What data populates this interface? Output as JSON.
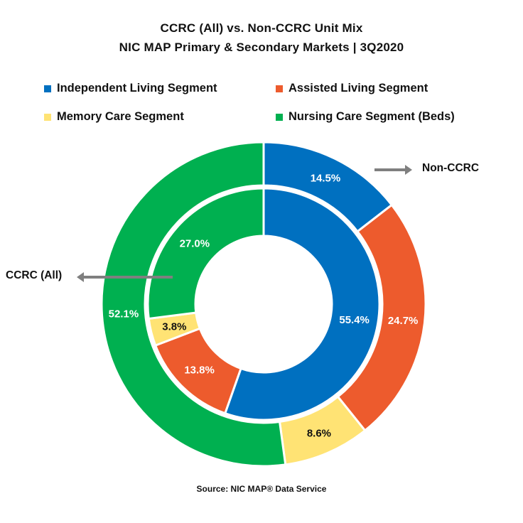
{
  "title_line1": "CCRC (All) vs. Non-CCRC Unit Mix",
  "title_line2": "NIC MAP Primary & Secondary Markets | 3Q2020",
  "source": "Source: NIC MAP® Data Service",
  "colors": {
    "independent": "#0070C0",
    "assisted": "#ED5B2D",
    "memory": "#FFE374",
    "nursing": "#00B050"
  },
  "annotations": {
    "outer_ring": "Non-CCRC",
    "inner_ring": "CCRC (All)"
  },
  "chart_data": {
    "type": "pie",
    "style": "nested-donut",
    "title": "CCRC (All) vs. Non-CCRC Unit Mix",
    "subtitle": "NIC MAP Primary & Secondary Markets | 3Q2020",
    "legend": [
      "Independent Living Segment",
      "Assisted Living Segment",
      "Memory Care Segment",
      "Nursing Care Segment (Beds)"
    ],
    "legend_placement": "top",
    "categories": [
      "Independent Living Segment",
      "Assisted Living Segment",
      "Memory Care Segment",
      "Nursing Care Segment (Beds)"
    ],
    "series": [
      {
        "name": "Non-CCRC",
        "ring": "outer",
        "values": [
          14.5,
          24.7,
          8.6,
          52.1
        ],
        "labels": [
          "14.5%",
          "24.7%",
          "8.6%",
          "52.1%"
        ]
      },
      {
        "name": "CCRC (All)",
        "ring": "inner",
        "values": [
          55.4,
          13.8,
          3.8,
          27.0
        ],
        "labels": [
          "55.4%",
          "13.8%",
          "3.8%",
          "27.0%"
        ]
      }
    ],
    "unit": "%"
  }
}
